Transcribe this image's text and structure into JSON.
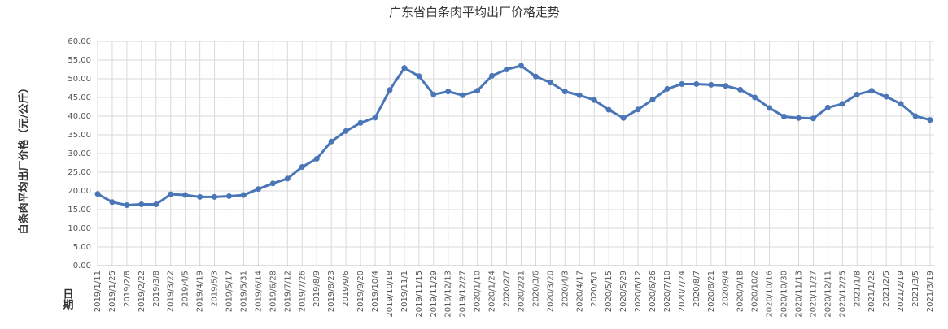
{
  "chart_data": {
    "type": "line",
    "title": "广东省白条肉平均出厂价格走势",
    "y_label": "白条肉平均出厂价格（元/公斤）",
    "x_label": "日期",
    "categories": [
      "2019/1/11",
      "2019/1/25",
      "2019/2/8",
      "2019/2/22",
      "2019/3/8",
      "2019/3/22",
      "2019/4/5",
      "2019/4/19",
      "2019/5/3",
      "2019/5/17",
      "2019/5/31",
      "2019/6/14",
      "2019/6/28",
      "2019/7/12",
      "2019/7/26",
      "2019/8/9",
      "2019/8/23",
      "2019/9/6",
      "2019/9/20",
      "2019/10/4",
      "2019/10/18",
      "2019/11/1",
      "2019/11/15",
      "2019/11/29",
      "2019/12/13",
      "2019/12/27",
      "2020/1/10",
      "2020/1/24",
      "2020/2/7",
      "2020/2/21",
      "2020/3/6",
      "2020/3/20",
      "2020/4/3",
      "2020/4/17",
      "2020/5/1",
      "2020/5/15",
      "2020/5/29",
      "2020/6/12",
      "2020/6/26",
      "2020/7/10",
      "2020/7/24",
      "2020/8/7",
      "2020/8/21",
      "2020/9/4",
      "2020/9/18",
      "2020/10/2",
      "2020/10/16",
      "2020/10/30",
      "2020/11/13",
      "2020/11/27",
      "2020/12/11",
      "2020/12/25",
      "2021/1/8",
      "2021/1/22",
      "2021/2/5",
      "2021/2/19",
      "2021/3/5",
      "2021/3/19"
    ],
    "values": [
      19.2,
      17.0,
      16.2,
      16.4,
      16.4,
      19.1,
      18.9,
      18.4,
      18.4,
      18.6,
      18.9,
      20.5,
      22.0,
      23.3,
      26.4,
      28.6,
      33.2,
      36.0,
      38.2,
      39.6,
      47.0,
      52.9,
      50.7,
      45.8,
      46.6,
      45.6,
      46.8,
      50.8,
      52.5,
      53.5,
      50.6,
      49.0,
      46.6,
      45.6,
      44.3,
      41.7,
      39.5,
      41.8,
      44.4,
      47.3,
      48.6,
      48.6,
      48.4,
      48.1,
      47.1,
      45.0,
      42.2,
      39.9,
      39.5,
      39.4,
      42.3,
      43.3,
      45.8,
      46.8,
      45.2,
      43.3,
      40.0,
      39.0
    ],
    "color": "#4a76b8",
    "ylim": [
      0,
      60
    ],
    "yticks": [
      {
        "value": 0,
        "label": "0.00"
      },
      {
        "value": 5,
        "label": "5.00"
      },
      {
        "value": 10,
        "label": "10.00"
      },
      {
        "value": 15,
        "label": "15.00"
      },
      {
        "value": 20,
        "label": "20.00"
      },
      {
        "value": 25,
        "label": "25.00"
      },
      {
        "value": 30,
        "label": "30.00"
      },
      {
        "value": 35,
        "label": "35.00"
      },
      {
        "value": 40,
        "label": "40.00"
      },
      {
        "value": 45,
        "label": "45.00"
      },
      {
        "value": 50,
        "label": "50.00"
      },
      {
        "value": 55,
        "label": "55.00"
      },
      {
        "value": 60,
        "label": "60.00"
      }
    ],
    "grid": true
  }
}
